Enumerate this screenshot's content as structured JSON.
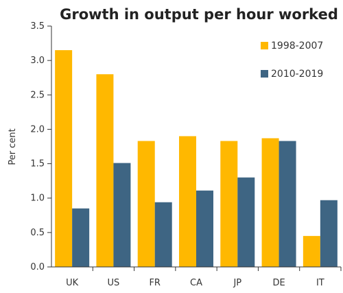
{
  "chart_data": {
    "type": "bar",
    "title": "Growth in output per hour worked",
    "ylabel": "Per cent",
    "xlabel": "",
    "categories": [
      "UK",
      "US",
      "FR",
      "CA",
      "JP",
      "DE",
      "IT"
    ],
    "series": [
      {
        "name": "1998-2007",
        "color": "#FFB800",
        "values": [
          3.15,
          2.8,
          1.83,
          1.9,
          1.83,
          1.87,
          0.45
        ]
      },
      {
        "name": "2010-2019",
        "color": "#3E6583",
        "values": [
          0.85,
          1.51,
          0.94,
          1.11,
          1.3,
          1.83,
          0.97
        ]
      }
    ],
    "ylim": [
      0,
      3.5
    ],
    "yticks": [
      0,
      0.5,
      1,
      1.5,
      2,
      2.5,
      3,
      3.5
    ],
    "ytick_labels": [
      "0.0",
      "0.5",
      "1.0",
      "1.5",
      "2.0",
      "2.5",
      "3.0",
      "3.5"
    ],
    "grid": false,
    "legend_position": "top-right"
  }
}
